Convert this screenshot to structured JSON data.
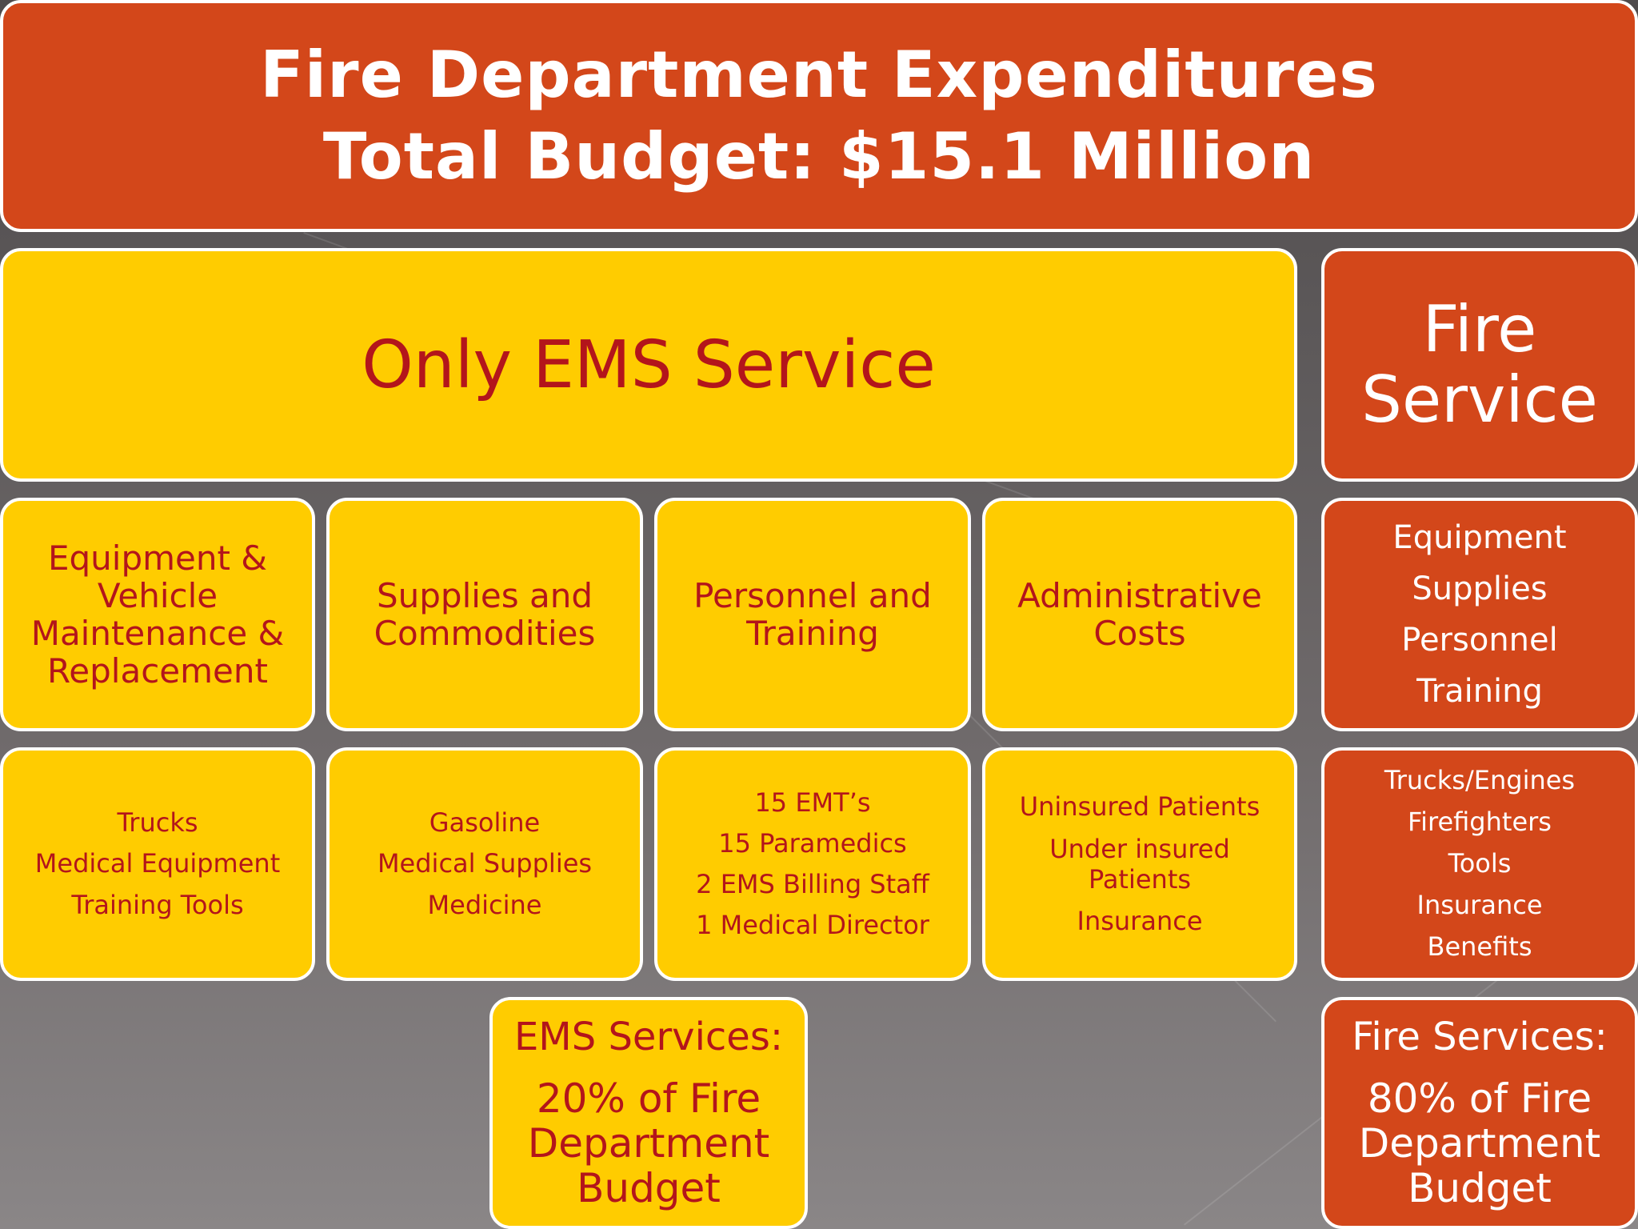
{
  "header": {
    "title": "Fire Department Expenditures",
    "subtitle": "Total Budget: $15.1 Million"
  },
  "ems": {
    "heading": "Only EMS Service",
    "categories": [
      {
        "lines": [
          "Equipment &",
          "Vehicle",
          "Maintenance &",
          "Replacement"
        ]
      },
      {
        "lines": [
          "Supplies and",
          "Commodities"
        ]
      },
      {
        "lines": [
          "Personnel and",
          "Training"
        ]
      },
      {
        "lines": [
          "Administrative",
          "Costs"
        ]
      }
    ],
    "details": [
      {
        "lines": [
          "Trucks",
          "Medical Equipment",
          "Training Tools"
        ]
      },
      {
        "lines": [
          "Gasoline",
          "Medical Supplies",
          "Medicine"
        ]
      },
      {
        "lines": [
          "15 EMT’s",
          "15 Paramedics",
          "2 EMS Billing Staff",
          "1 Medical Director"
        ]
      },
      {
        "lines": [
          "Uninsured Patients",
          "Under insured",
          "Patients",
          "Insurance"
        ]
      }
    ],
    "summary": {
      "label": "EMS Services:",
      "lines": [
        "20% of Fire",
        "Department",
        "Budget"
      ]
    }
  },
  "fire": {
    "heading_lines": [
      "Fire",
      "Service"
    ],
    "categories": [
      "Equipment",
      "Supplies",
      "Personnel",
      "Training"
    ],
    "details": [
      "Trucks/Engines",
      "Firefighters",
      "Tools",
      "Insurance",
      "Benefits"
    ],
    "summary": {
      "label": "Fire Services:",
      "lines": [
        "80% of Fire",
        "Department",
        "Budget"
      ]
    }
  },
  "colors": {
    "orange": "#d3471a",
    "yellow": "#ffcc00",
    "dark_red_text": "#b3151b",
    "white_text": "#ffffff"
  }
}
